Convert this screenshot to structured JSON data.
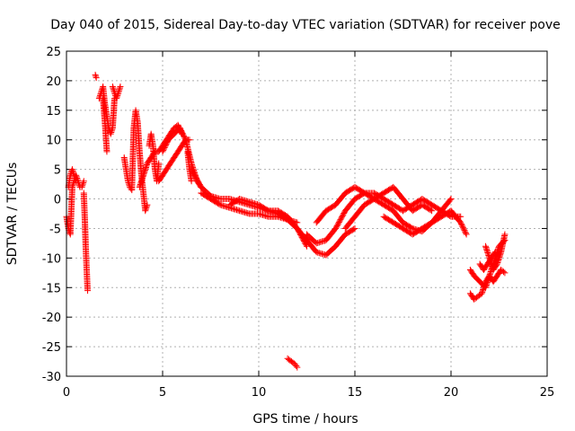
{
  "chart_data": {
    "type": "scatter",
    "title": "Day 040 of 2015, Sidereal Day-to-day VTEC variation (SDTVAR) for receiver pove",
    "xlabel": "GPS time / hours",
    "ylabel": "SDTVAR / TECUs",
    "xlim": [
      0,
      25
    ],
    "ylim": [
      -30,
      25
    ],
    "xticks": [
      0,
      5,
      10,
      15,
      20,
      25
    ],
    "yticks": [
      -30,
      -25,
      -20,
      -15,
      -10,
      -5,
      0,
      5,
      10,
      15,
      20,
      25
    ],
    "grid": true,
    "marker": "+",
    "color": "#ff0000",
    "segments": [
      {
        "name": "arc-early-a",
        "x": [
          0.0,
          0.1,
          0.2,
          0.3,
          0.4,
          0.5,
          0.6,
          0.7,
          0.8,
          0.9
        ],
        "y": [
          -3,
          -5,
          -6,
          2,
          3,
          4,
          3,
          2,
          2,
          3
        ]
      },
      {
        "name": "arc-early-b",
        "x": [
          0.1,
          0.2,
          0.3,
          0.4,
          0.5
        ],
        "y": [
          2,
          4,
          5,
          4,
          3
        ]
      },
      {
        "name": "arc-drop",
        "x": [
          0.9,
          0.95,
          1.0,
          1.05,
          1.1
        ],
        "y": [
          1,
          -3,
          -8,
          -12,
          -15.5
        ]
      },
      {
        "name": "arc-spike-1.5",
        "x": [
          1.5,
          1.55
        ],
        "y": [
          21,
          20.5
        ]
      },
      {
        "name": "arc-1.7-2.5",
        "x": [
          1.7,
          1.8,
          1.9,
          2.0,
          2.1,
          2.2,
          2.3,
          2.4,
          2.5
        ],
        "y": [
          17,
          18,
          19,
          16,
          14,
          12,
          11,
          12,
          17
        ]
      },
      {
        "name": "arc-2.0-drop",
        "x": [
          1.9,
          2.0,
          2.1
        ],
        "y": [
          17,
          13,
          8
        ]
      },
      {
        "name": "arc-2.5-2.8",
        "x": [
          2.4,
          2.5,
          2.6,
          2.7,
          2.8
        ],
        "y": [
          19,
          18,
          17,
          18,
          19
        ]
      },
      {
        "name": "arc-3.0-4.5",
        "x": [
          3.0,
          3.1,
          3.2,
          3.3,
          3.4,
          3.5,
          3.6,
          3.7,
          3.8,
          3.9,
          4.0,
          4.1,
          4.2
        ],
        "y": [
          7,
          5,
          3,
          2,
          1.5,
          12,
          15,
          13,
          8,
          4,
          1,
          -2,
          -1
        ]
      },
      {
        "name": "arc-4.0-5.5",
        "x": [
          3.8,
          4.0,
          4.2,
          4.4,
          4.6,
          4.8,
          5.0,
          5.2,
          5.4,
          5.6,
          5.8,
          6.0
        ],
        "y": [
          2,
          4,
          6,
          7,
          8,
          8,
          9,
          10,
          11,
          12,
          12.5,
          11
        ]
      },
      {
        "name": "arc-4.3-4.8-spike",
        "x": [
          4.3,
          4.4,
          4.5,
          4.6,
          4.7,
          4.8
        ],
        "y": [
          9,
          11,
          9,
          5,
          3,
          6
        ]
      },
      {
        "name": "arc-5.0-6.0-b",
        "x": [
          4.8,
          5.0,
          5.2,
          5.4,
          5.6,
          5.8,
          6.0,
          6.2,
          6.4
        ],
        "y": [
          3,
          4,
          5,
          6,
          7,
          8,
          9,
          10,
          10
        ]
      },
      {
        "name": "arc-5.5-6.5-c",
        "x": [
          5.0,
          5.3,
          5.6,
          5.9,
          6.2,
          6.5,
          6.8,
          7.0
        ],
        "y": [
          8,
          10,
          11,
          12,
          10,
          6,
          3,
          2
        ]
      },
      {
        "name": "arc-6.3-6.5-stub",
        "x": [
          6.3,
          6.4,
          6.5
        ],
        "y": [
          8,
          5,
          3
        ]
      },
      {
        "name": "arc-main-1",
        "x": [
          6.5,
          7.0,
          7.5,
          8.0,
          8.5,
          9.0,
          9.5,
          10.0,
          10.5,
          11.0,
          11.5,
          12.0,
          12.5
        ],
        "y": [
          5,
          2,
          0.5,
          0,
          0,
          -0.5,
          -1,
          -1.5,
          -2,
          -2,
          -3,
          -5,
          -8
        ]
      },
      {
        "name": "arc-main-2",
        "x": [
          7.0,
          7.5,
          8.0,
          8.5,
          9.0,
          9.5,
          10.0,
          10.5,
          11.0,
          11.5,
          12.0
        ],
        "y": [
          1,
          0,
          -1,
          -1.5,
          -2,
          -2.5,
          -2.5,
          -3,
          -3,
          -3.5,
          -4
        ]
      },
      {
        "name": "arc-main-3",
        "x": [
          8.5,
          9.0,
          9.5,
          10.0,
          10.5,
          11.0,
          11.5,
          12.0,
          12.5,
          13.0,
          13.5,
          14.0,
          14.5,
          15.0
        ],
        "y": [
          -1,
          0,
          -0.5,
          -1,
          -2,
          -2.5,
          -3.5,
          -5,
          -7,
          -9,
          -9.5,
          -8,
          -6,
          -5
        ]
      },
      {
        "name": "arc-main-4",
        "x": [
          12.5,
          13.0,
          13.5,
          14.0,
          14.5,
          15.0,
          15.5,
          16.0,
          16.5,
          17.0,
          17.5
        ],
        "y": [
          -6,
          -7.5,
          -7,
          -5,
          -2,
          0,
          1,
          1,
          0,
          -1,
          -2
        ]
      },
      {
        "name": "arc-main-5",
        "x": [
          13.0,
          13.5,
          14.0,
          14.5,
          15.0,
          15.5,
          16.0,
          16.5,
          17.0,
          17.5,
          18.0,
          18.5,
          19.0
        ],
        "y": [
          -4,
          -2,
          -1,
          1,
          2,
          1,
          0,
          1,
          2,
          0,
          -2,
          -1,
          -2
        ]
      },
      {
        "name": "arc-main-6",
        "x": [
          14.5,
          15.0,
          15.5,
          16.0,
          16.5,
          17.0,
          17.5,
          18.0,
          18.5,
          19.0,
          19.5,
          20.0
        ],
        "y": [
          -5,
          -3,
          -1,
          0,
          -1,
          -2,
          -4,
          -5,
          -5.5,
          -4,
          -2,
          0
        ]
      },
      {
        "name": "arc-main-7",
        "x": [
          16.5,
          17.0,
          17.5,
          18.0,
          18.5,
          19.0,
          19.5,
          20.0,
          20.5,
          20.8
        ],
        "y": [
          -3,
          -4,
          -5,
          -6,
          -5,
          -4,
          -3,
          -2,
          -4,
          -6
        ]
      },
      {
        "name": "arc-main-8",
        "x": [
          17.5,
          18.0,
          18.5,
          19.0,
          19.5,
          20.0,
          20.5
        ],
        "y": [
          -2,
          -1,
          0,
          -1,
          -2,
          -3,
          -3
        ]
      },
      {
        "name": "arc-outlier-12",
        "x": [
          11.5,
          11.7,
          11.9,
          12.0
        ],
        "y": [
          -27,
          -27.5,
          -28,
          -28.5
        ]
      },
      {
        "name": "arc-late-1",
        "x": [
          21.0,
          21.2,
          21.4,
          21.6,
          21.8,
          22.0,
          22.2,
          22.4,
          22.6,
          22.8
        ],
        "y": [
          -16,
          -17,
          -16.5,
          -16,
          -14,
          -13,
          -14,
          -13,
          -12,
          -12.5
        ]
      },
      {
        "name": "arc-late-2",
        "x": [
          21.0,
          21.2,
          21.5,
          21.8,
          22.0,
          22.3,
          22.5,
          22.8
        ],
        "y": [
          -12,
          -13,
          -14,
          -15,
          -13,
          -10,
          -8,
          -7
        ]
      },
      {
        "name": "arc-late-3",
        "x": [
          21.8,
          22.0,
          22.2,
          22.4,
          22.6,
          22.8
        ],
        "y": [
          -8,
          -10,
          -12,
          -11,
          -9,
          -6
        ]
      },
      {
        "name": "arc-late-4",
        "x": [
          21.5,
          21.7,
          21.9,
          22.1,
          22.3
        ],
        "y": [
          -11,
          -12,
          -11,
          -10,
          -9
        ]
      }
    ]
  }
}
